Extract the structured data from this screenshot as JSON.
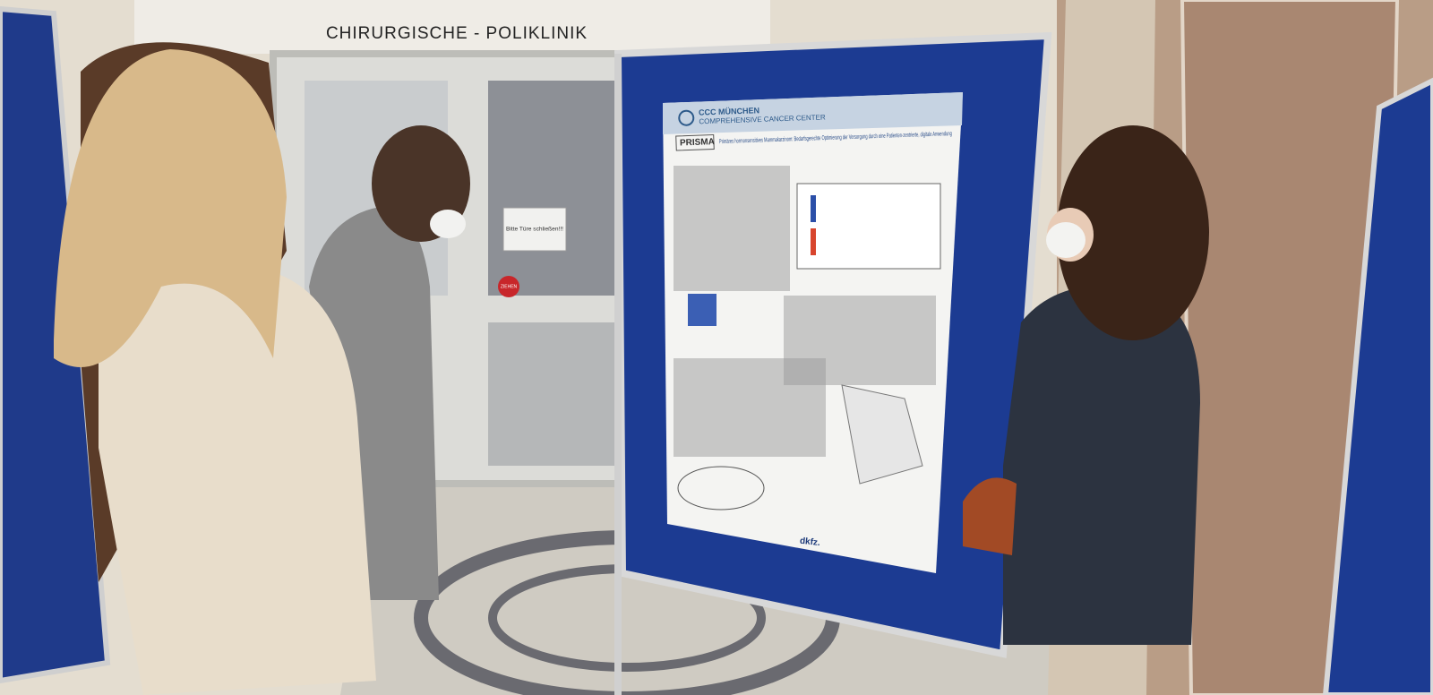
{
  "sign": {
    "text": "CHIRURGISCHE - POLIKLINIK"
  },
  "door": {
    "notice": "Bitte Türe schließen!!!",
    "button": "ZIEHEN"
  },
  "poster": {
    "logo": "CCC MÜNCHEN",
    "logo_sub": "COMPREHENSIVE CANCER CENTER",
    "acronym": "PRISMA",
    "title": "Primäres hormonsensitives Mammakarzinom: Bedarfsgerechte Optimierung der Versorgung durch eine Patienten-zentrierte, digitale Anwendung",
    "footer_logo": "dkfz."
  }
}
